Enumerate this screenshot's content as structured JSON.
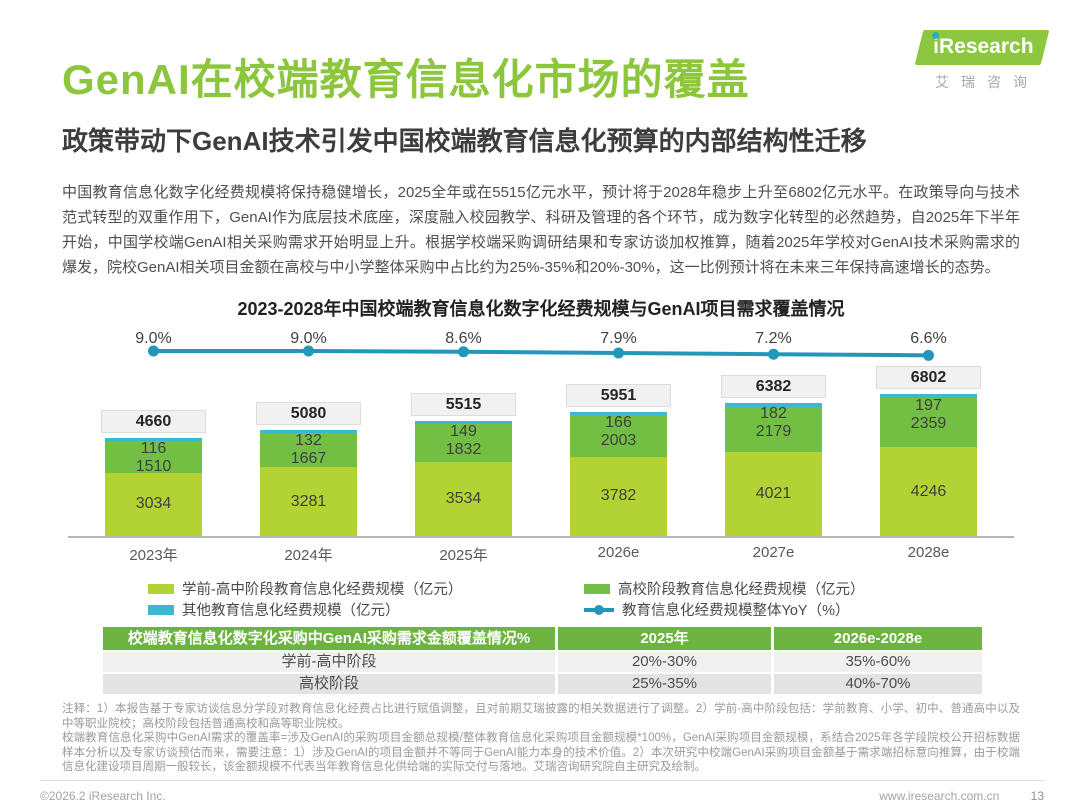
{
  "header": {
    "title": "GenAI在校端教育信息化市场的覆盖",
    "subtitle": "政策带动下GenAI技术引发中国校端教育信息化预算的内部结构性迁移"
  },
  "logo": {
    "i": "i",
    "rest": "Research",
    "caption": "艾瑞咨询"
  },
  "intro": {
    "text": "中国教育信息化数字化经费规模将保持稳健增长，2025全年或在5515亿元水平，预计将于2028年稳步上升至6802亿元水平。在政策导向与技术范式转型的双重作用下，GenAI作为底层技术底座，深度融入校园教学、科研及管理的各个环节，成为数字化转型的必然趋势，自2025年下半年开始，中国学校端GenAI相关采购需求开始明显上升。根据学校端采购调研结果和专家访谈加权推算，随着2025年学校对GenAI技术采购需求的爆发，院校GenAI相关项目金额在高校与中小学整体采购中占比约为25%-35%和20%-30%，这一比例预计将在未来三年保持高速增长的态势。"
  },
  "chart_data": {
    "type": "bar",
    "subtype": "stacked-bar-with-line",
    "title": "2023-2028年中国校端教育信息化数字化经费规模与GenAI项目需求覆盖情况",
    "categories": [
      "2023年",
      "2024年",
      "2025年",
      "2026e",
      "2027e",
      "2028e"
    ],
    "series": [
      {
        "name": "学前-高中阶段教育信息化经费规模（亿元）",
        "color": "#b3d335",
        "values": [
          3034,
          3281,
          3534,
          3782,
          4021,
          4246
        ]
      },
      {
        "name": "高校阶段教育信息化经费规模（亿元）",
        "color": "#72bf44",
        "values": [
          1510,
          1667,
          1832,
          2003,
          2179,
          2359
        ]
      },
      {
        "name": "其他教育信息化经费规模（亿元）",
        "color": "#39b9d2",
        "values": [
          116,
          132,
          149,
          166,
          182,
          197
        ]
      }
    ],
    "totals": [
      4660,
      5080,
      5515,
      5951,
      6382,
      6802
    ],
    "line": {
      "name": "教育信息化经费规模整体YoY（%）",
      "color": "#2397ba",
      "values": [
        9.0,
        9.0,
        8.6,
        7.9,
        7.2,
        6.6
      ],
      "labels": [
        "9.0%",
        "9.0%",
        "8.6%",
        "7.9%",
        "7.2%",
        "6.6%"
      ]
    },
    "legend_position": "bottom",
    "grid": false
  },
  "table": {
    "header": [
      "校端教育信息化数字化采购中GenAI采购需求金额覆盖情况%",
      "2025年",
      "2026e-2028e"
    ],
    "rows": [
      [
        "学前-高中阶段",
        "20%-30%",
        "35%-60%"
      ],
      [
        "高校阶段",
        "25%-35%",
        "40%-70%"
      ]
    ]
  },
  "notes": {
    "note1": "注释：1）本报告基于专家访谈信息分学段对教育信息化经费占比进行赋值调整，且对前期艾瑞披露的相关数据进行了调整。2）学前-高中阶段包括：学前教育、小学、初中、普通高中以及中等职业院校；高校阶段包括普通高校和高等职业院校。",
    "note2": "校端教育信息化采购中GenAI需求的覆盖率=涉及GenAI的采购项目金额总规模/整体教育信息化采购项目金额规模*100%，GenAI采购项目金额规模，系结合2025年各学段院校公开招标数据样本分析以及专家访谈预估而来，需要注意：1）涉及GenAI的项目金额并不等同于GenAI能力本身的技术价值。2）本次研究中校端GenAI采购项目金额基于需求端招标意向推算，由于校端信息化建设项目周期一般较长，该金额规模不代表当年教育信息化供给端的实际交付与落地。艾瑞咨询研究院自主研究及绘制。"
  },
  "footer": {
    "copyright": "©2026.2 iResearch Inc.",
    "website": "www.iresearch.com.cn",
    "page": "13"
  }
}
